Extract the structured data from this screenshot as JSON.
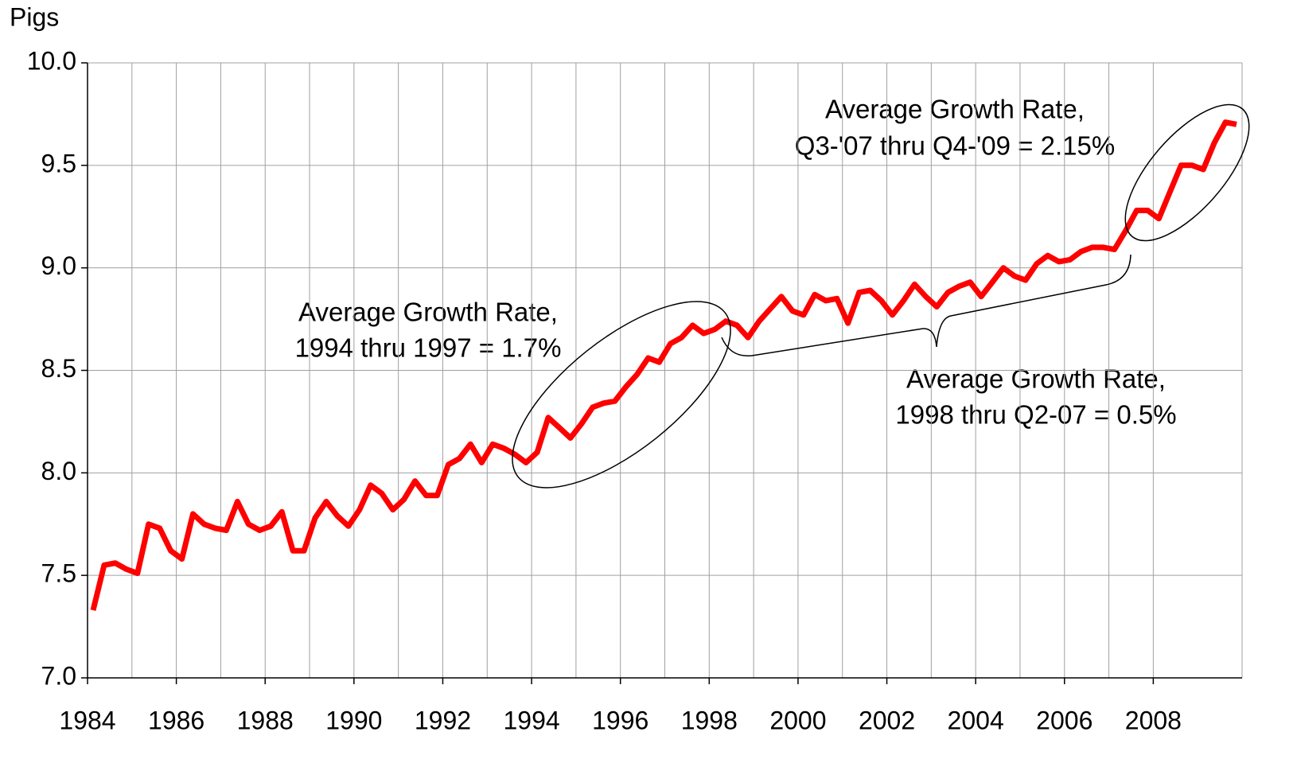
{
  "chart_data": {
    "type": "line",
    "y_label": "Pigs",
    "color": "#ff0000",
    "grid": true,
    "xlim": [
      1984,
      2010
    ],
    "xticks": [
      1984,
      1986,
      1988,
      1990,
      1992,
      1994,
      1996,
      1998,
      2000,
      2002,
      2004,
      2006,
      2008
    ],
    "ylim": [
      7.0,
      10.0
    ],
    "yticks": [
      {
        "value": 7.0,
        "label": "7.0"
      },
      7.5,
      {
        "value": 8.0,
        "label": "8.0"
      },
      8.5,
      {
        "value": 9.0,
        "label": "9.0"
      },
      9.5,
      {
        "value": 10.0,
        "label": "10.0"
      }
    ],
    "x": [
      1984.125,
      1984.375,
      1984.625,
      1984.875,
      1985.125,
      1985.375,
      1985.625,
      1985.875,
      1986.125,
      1986.375,
      1986.625,
      1986.875,
      1987.125,
      1987.375,
      1987.625,
      1987.875,
      1988.125,
      1988.375,
      1988.625,
      1988.875,
      1989.125,
      1989.375,
      1989.625,
      1989.875,
      1990.125,
      1990.375,
      1990.625,
      1990.875,
      1991.125,
      1991.375,
      1991.625,
      1991.875,
      1992.125,
      1992.375,
      1992.625,
      1992.875,
      1993.125,
      1993.375,
      1993.625,
      1993.875,
      1994.125,
      1994.375,
      1994.625,
      1994.875,
      1995.125,
      1995.375,
      1995.625,
      1995.875,
      1996.125,
      1996.375,
      1996.625,
      1996.875,
      1997.125,
      1997.375,
      1997.625,
      1997.875,
      1998.125,
      1998.375,
      1998.625,
      1998.875,
      1999.125,
      1999.375,
      1999.625,
      1999.875,
      2000.125,
      2000.375,
      2000.625,
      2000.875,
      2001.125,
      2001.375,
      2001.625,
      2001.875,
      2002.125,
      2002.375,
      2002.625,
      2002.875,
      2003.125,
      2003.375,
      2003.625,
      2003.875,
      2004.125,
      2004.375,
      2004.625,
      2004.875,
      2005.125,
      2005.375,
      2005.625,
      2005.875,
      2006.125,
      2006.375,
      2006.625,
      2006.875,
      2007.125,
      2007.375,
      2007.625,
      2007.875,
      2008.125,
      2008.375,
      2008.625,
      2008.875,
      2009.125,
      2009.375,
      2009.625,
      2009.875
    ],
    "values": [
      7.33,
      7.55,
      7.56,
      7.53,
      7.51,
      7.75,
      7.73,
      7.62,
      7.58,
      7.8,
      7.75,
      7.73,
      7.72,
      7.86,
      7.75,
      7.72,
      7.74,
      7.81,
      7.62,
      7.62,
      7.78,
      7.86,
      7.79,
      7.74,
      7.82,
      7.94,
      7.9,
      7.82,
      7.87,
      7.96,
      7.89,
      7.89,
      8.04,
      8.07,
      8.14,
      8.05,
      8.14,
      8.12,
      8.09,
      8.05,
      8.1,
      8.27,
      8.22,
      8.17,
      8.24,
      8.32,
      8.34,
      8.35,
      8.42,
      8.48,
      8.56,
      8.54,
      8.63,
      8.66,
      8.72,
      8.68,
      8.7,
      8.74,
      8.72,
      8.66,
      8.74,
      8.8,
      8.86,
      8.79,
      8.77,
      8.87,
      8.84,
      8.85,
      8.73,
      8.88,
      8.89,
      8.84,
      8.77,
      8.84,
      8.92,
      8.86,
      8.81,
      8.88,
      8.91,
      8.93,
      8.86,
      8.93,
      9.0,
      8.96,
      8.94,
      9.02,
      9.06,
      9.03,
      9.04,
      9.08,
      9.1,
      9.1,
      9.09,
      9.18,
      9.28,
      9.28,
      9.24,
      9.37,
      9.5,
      9.5,
      9.48,
      9.61,
      9.71,
      9.7
    ],
    "annotations": [
      [
        "Average Growth Rate,",
        "1994 thru 1997 = 1.7%"
      ],
      [
        "Average Growth Rate,",
        "Q3-'07 thru Q4-'09 = 2.15%"
      ],
      [
        "Average Growth Rate,",
        "1998 thru Q2-07 = 0.5%"
      ]
    ]
  }
}
